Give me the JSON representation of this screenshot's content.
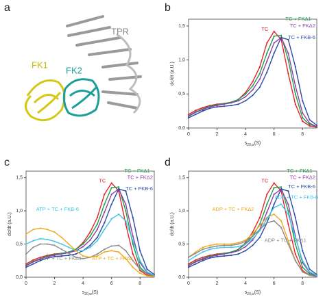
{
  "panel_a": {
    "label": "a",
    "structure_labels": [
      "TPR",
      "FK1",
      "FK2"
    ]
  },
  "chart_data": [
    {
      "type": "line",
      "panel": "b",
      "xlabel": {
        "main": "s",
        "sub": "20,w",
        "unit": "(S)"
      },
      "ylabel": "dc/dt (a.U.)",
      "xlim": [
        0,
        9
      ],
      "ylim": [
        0,
        1.6
      ],
      "xticks": [
        0,
        2,
        4,
        6,
        8
      ],
      "yticks": [
        {
          "value": 0,
          "label": "0,0"
        },
        {
          "value": 0.5,
          "label": "0,5"
        },
        {
          "value": 1,
          "label": "1,0"
        },
        {
          "value": 1.5,
          "label": "1,5"
        }
      ],
      "x": [
        0,
        0.5,
        1,
        1.5,
        2,
        2.5,
        3,
        3.5,
        4,
        4.5,
        5,
        5.5,
        6,
        6.5,
        7,
        7.5,
        8,
        8.5,
        9
      ],
      "series": [
        {
          "name": "TC",
          "color": "#e8202a",
          "values": [
            0.2,
            0.26,
            0.3,
            0.33,
            0.35,
            0.36,
            0.37,
            0.42,
            0.52,
            0.68,
            0.9,
            1.25,
            1.42,
            1.3,
            0.8,
            0.35,
            0.1,
            0.03,
            0.01
          ]
        },
        {
          "name": "TC + FKΔ1",
          "color": "#1e9e4a",
          "values": [
            0.18,
            0.24,
            0.28,
            0.32,
            0.34,
            0.36,
            0.38,
            0.42,
            0.5,
            0.62,
            0.8,
            1.1,
            1.35,
            1.36,
            1.0,
            0.5,
            0.15,
            0.05,
            0.02
          ]
        },
        {
          "name": "TC + FKΔ2",
          "color": "#8e3fa8",
          "values": [
            0.17,
            0.23,
            0.27,
            0.31,
            0.33,
            0.35,
            0.37,
            0.4,
            0.46,
            0.56,
            0.72,
            0.98,
            1.25,
            1.33,
            1.1,
            0.62,
            0.22,
            0.07,
            0.02
          ]
        },
        {
          "name": "TC + FKB-6",
          "color": "#2b4aa6",
          "values": [
            0.15,
            0.2,
            0.25,
            0.29,
            0.31,
            0.32,
            0.33,
            0.35,
            0.4,
            0.48,
            0.6,
            0.82,
            1.1,
            1.33,
            1.3,
            0.9,
            0.4,
            0.12,
            0.04
          ]
        }
      ]
    },
    {
      "type": "line",
      "panel": "c",
      "xlabel": {
        "main": "s",
        "sub": "20,w",
        "unit": "(S)"
      },
      "ylabel": "dc/dt (a.U.)",
      "xlim": [
        0,
        9
      ],
      "ylim": [
        0,
        1.6
      ],
      "xticks": [
        0,
        2,
        4,
        6,
        8
      ],
      "yticks": [
        {
          "value": 0,
          "label": "0,0"
        },
        {
          "value": 0.5,
          "label": "0,5"
        },
        {
          "value": 1,
          "label": "1,0"
        },
        {
          "value": 1.5,
          "label": "1,5"
        }
      ],
      "x": [
        0,
        0.5,
        1,
        1.5,
        2,
        2.5,
        3,
        3.5,
        4,
        4.5,
        5,
        5.5,
        6,
        6.5,
        7,
        7.5,
        8,
        8.5,
        9
      ],
      "series": [
        {
          "name": "TC",
          "color": "#e8202a",
          "values": [
            0.2,
            0.26,
            0.3,
            0.33,
            0.35,
            0.36,
            0.37,
            0.42,
            0.52,
            0.68,
            0.9,
            1.25,
            1.42,
            1.3,
            0.8,
            0.35,
            0.1,
            0.03,
            0.01
          ]
        },
        {
          "name": "TC + FKΔ1",
          "color": "#1e9e4a",
          "values": [
            0.18,
            0.24,
            0.28,
            0.32,
            0.34,
            0.36,
            0.38,
            0.42,
            0.5,
            0.62,
            0.8,
            1.1,
            1.35,
            1.36,
            1.0,
            0.5,
            0.15,
            0.05,
            0.02
          ]
        },
        {
          "name": "TC + FKΔ2",
          "color": "#8e3fa8",
          "values": [
            0.17,
            0.23,
            0.27,
            0.31,
            0.33,
            0.35,
            0.37,
            0.4,
            0.46,
            0.56,
            0.72,
            0.98,
            1.25,
            1.33,
            1.1,
            0.62,
            0.22,
            0.07,
            0.02
          ]
        },
        {
          "name": "TC + FKB-6",
          "color": "#2b4aa6",
          "values": [
            0.15,
            0.2,
            0.25,
            0.29,
            0.31,
            0.32,
            0.33,
            0.35,
            0.4,
            0.48,
            0.6,
            0.82,
            1.1,
            1.33,
            1.3,
            0.9,
            0.4,
            0.12,
            0.04
          ]
        },
        {
          "name": "ATP + TC + FKB-6",
          "color": "#3fc4e8",
          "values": [
            0.5,
            0.55,
            0.58,
            0.57,
            0.54,
            0.5,
            0.45,
            0.4,
            0.4,
            0.45,
            0.55,
            0.72,
            0.88,
            0.95,
            0.85,
            0.55,
            0.25,
            0.08,
            0.03
          ]
        },
        {
          "name": "ATP + TC + FKΔ1",
          "color": "#8a8a8a",
          "values": [
            0.35,
            0.45,
            0.5,
            0.5,
            0.48,
            0.42,
            0.36,
            0.3,
            0.28,
            0.3,
            0.35,
            0.42,
            0.47,
            0.48,
            0.4,
            0.25,
            0.12,
            0.05,
            0.02
          ]
        },
        {
          "name": "ATP + TC + FKΔ2",
          "color": "#f0a820",
          "values": [
            0.65,
            0.72,
            0.74,
            0.72,
            0.68,
            0.6,
            0.5,
            0.4,
            0.32,
            0.3,
            0.32,
            0.38,
            0.4,
            0.38,
            0.28,
            0.15,
            0.06,
            0.02,
            0.01
          ]
        }
      ]
    },
    {
      "type": "line",
      "panel": "d",
      "xlabel": {
        "main": "s",
        "sub": "20,w",
        "unit": "(S)"
      },
      "ylabel": "dc/dt (a.U.)",
      "xlim": [
        0,
        9
      ],
      "ylim": [
        0,
        1.6
      ],
      "xticks": [
        0,
        2,
        4,
        6,
        8
      ],
      "yticks": [
        {
          "value": 0,
          "label": "0,0"
        },
        {
          "value": 0.5,
          "label": "0,5"
        },
        {
          "value": 1,
          "label": "1,0"
        },
        {
          "value": 1.5,
          "label": "1,5"
        }
      ],
      "x": [
        0,
        0.5,
        1,
        1.5,
        2,
        2.5,
        3,
        3.5,
        4,
        4.5,
        5,
        5.5,
        6,
        6.5,
        7,
        7.5,
        8,
        8.5,
        9
      ],
      "series": [
        {
          "name": "TC",
          "color": "#e8202a",
          "values": [
            0.2,
            0.26,
            0.3,
            0.33,
            0.35,
            0.36,
            0.37,
            0.42,
            0.52,
            0.68,
            0.9,
            1.25,
            1.42,
            1.3,
            0.8,
            0.35,
            0.1,
            0.03,
            0.01
          ]
        },
        {
          "name": "TC + FKΔ1",
          "color": "#1e9e4a",
          "values": [
            0.18,
            0.24,
            0.28,
            0.32,
            0.34,
            0.36,
            0.38,
            0.42,
            0.5,
            0.62,
            0.8,
            1.1,
            1.35,
            1.36,
            1.0,
            0.5,
            0.15,
            0.05,
            0.02
          ]
        },
        {
          "name": "TC + FKΔ2",
          "color": "#8e3fa8",
          "values": [
            0.17,
            0.23,
            0.27,
            0.31,
            0.33,
            0.35,
            0.37,
            0.4,
            0.46,
            0.56,
            0.72,
            0.98,
            1.25,
            1.33,
            1.1,
            0.62,
            0.22,
            0.07,
            0.02
          ]
        },
        {
          "name": "TC + FKB-6",
          "color": "#2b4aa6",
          "values": [
            0.15,
            0.2,
            0.25,
            0.29,
            0.31,
            0.32,
            0.33,
            0.35,
            0.4,
            0.48,
            0.6,
            0.82,
            1.1,
            1.33,
            1.3,
            0.9,
            0.4,
            0.12,
            0.04
          ]
        },
        {
          "name": "ADP + TC + FKΔ2",
          "color": "#f0a820",
          "values": [
            0.3,
            0.38,
            0.45,
            0.48,
            0.5,
            0.5,
            0.5,
            0.52,
            0.56,
            0.65,
            0.78,
            0.9,
            0.95,
            0.85,
            0.55,
            0.25,
            0.08,
            0.03,
            0.01
          ]
        },
        {
          "name": "ADP + TC + FKB-6",
          "color": "#3fc4e8",
          "values": [
            0.25,
            0.32,
            0.38,
            0.42,
            0.44,
            0.45,
            0.45,
            0.46,
            0.5,
            0.58,
            0.7,
            0.88,
            1.05,
            1.1,
            0.95,
            0.6,
            0.25,
            0.08,
            0.03
          ]
        },
        {
          "name": "ADP + TC + FKΔ1",
          "color": "#8a8a8a",
          "values": [
            0.3,
            0.36,
            0.42,
            0.45,
            0.47,
            0.48,
            0.48,
            0.5,
            0.54,
            0.62,
            0.72,
            0.82,
            0.85,
            0.75,
            0.5,
            0.25,
            0.08,
            0.03,
            0.01
          ]
        }
      ]
    }
  ]
}
